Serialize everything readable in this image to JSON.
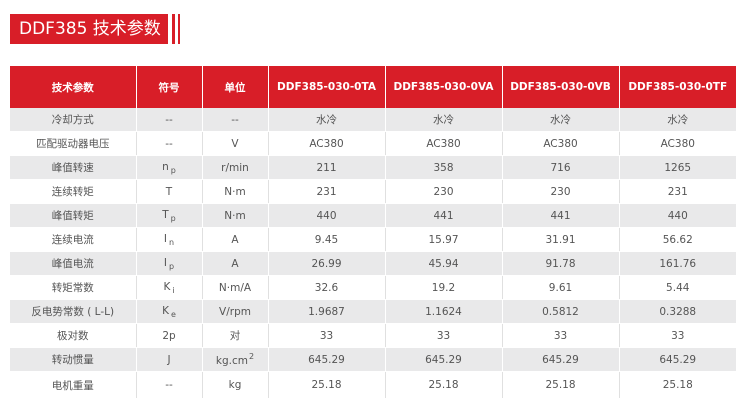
{
  "title": "DDF385 技术参数",
  "colors": {
    "accent": "#d81e28",
    "row_alt": "#e9e9ea"
  },
  "table": {
    "headers": [
      "技术参数",
      "符号",
      "单位",
      "DDF385-030-0TA",
      "DDF385-030-0VA",
      "DDF385-030-0VB",
      "DDF385-030-0TF"
    ],
    "rows": [
      {
        "param": "冷却方式",
        "sym": "--",
        "sym_sub": "",
        "unit": "--",
        "unit_sup": "",
        "values": [
          "水冷",
          "水冷",
          "水冷",
          "水冷"
        ]
      },
      {
        "param": "匹配驱动器电压",
        "sym": "--",
        "sym_sub": "",
        "unit": "V",
        "unit_sup": "",
        "values": [
          "AC380",
          "AC380",
          "AC380",
          "AC380"
        ]
      },
      {
        "param": "峰值转速",
        "sym": "n",
        "sym_sub": "p",
        "unit": "r/min",
        "unit_sup": "",
        "values": [
          "211",
          "358",
          "716",
          "1265"
        ]
      },
      {
        "param": "连续转矩",
        "sym": "T",
        "sym_sub": "",
        "unit": "N·m",
        "unit_sup": "",
        "values": [
          "231",
          "230",
          "230",
          "231"
        ]
      },
      {
        "param": "峰值转矩",
        "sym": "T",
        "sym_sub": "p",
        "unit": "N·m",
        "unit_sup": "",
        "values": [
          "440",
          "441",
          "441",
          "440"
        ]
      },
      {
        "param": "连续电流",
        "sym": "I",
        "sym_sub": "n",
        "unit": "A",
        "unit_sup": "",
        "values": [
          "9.45",
          "15.97",
          "31.91",
          "56.62"
        ]
      },
      {
        "param": "峰值电流",
        "sym": "I",
        "sym_sub": "p",
        "unit": "A",
        "unit_sup": "",
        "values": [
          "26.99",
          "45.94",
          "91.78",
          "161.76"
        ]
      },
      {
        "param": "转矩常数",
        "sym": "K",
        "sym_sub": "i",
        "unit": "N·m/A",
        "unit_sup": "",
        "values": [
          "32.6",
          "19.2",
          "9.61",
          "5.44"
        ]
      },
      {
        "param": "反电势常数 ( L-L)",
        "sym": "K",
        "sym_sub": "e",
        "unit": "V/rpm",
        "unit_sup": "",
        "values": [
          "1.9687",
          "1.1624",
          "0.5812",
          "0.3288"
        ]
      },
      {
        "param": "极对数",
        "sym": "2p",
        "sym_sub": "",
        "unit": "对",
        "unit_sup": "",
        "values": [
          "33",
          "33",
          "33",
          "33"
        ]
      },
      {
        "param": "转动惯量",
        "sym": "J",
        "sym_sub": "",
        "unit": "kg.cm",
        "unit_sup": "2",
        "values": [
          "645.29",
          "645.29",
          "645.29",
          "645.29"
        ]
      },
      {
        "param": "电机重量",
        "sym": "--",
        "sym_sub": "",
        "unit": "kg",
        "unit_sup": "",
        "values": [
          "25.18",
          "25.18",
          "25.18",
          "25.18"
        ]
      }
    ]
  }
}
